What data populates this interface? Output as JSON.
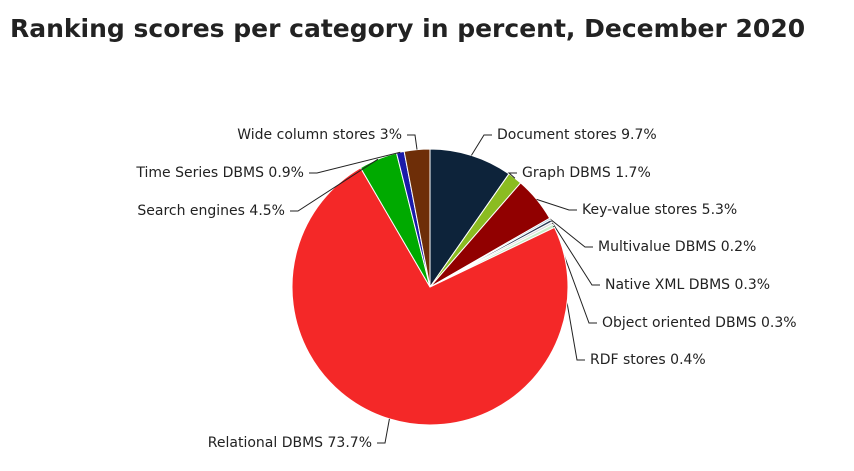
{
  "chart_data": {
    "type": "pie",
    "title": "Ranking scores per category in percent, December 2020",
    "categories": [
      "Document stores",
      "Graph DBMS",
      "Key-value stores",
      "Multivalue DBMS",
      "Native XML DBMS",
      "Object oriented DBMS",
      "RDF stores",
      "Relational DBMS",
      "Search engines",
      "Time Series DBMS",
      "Wide column stores"
    ],
    "values": [
      9.7,
      1.7,
      5.3,
      0.2,
      0.3,
      0.3,
      0.4,
      73.7,
      4.5,
      0.9,
      3
    ],
    "value_labels": [
      "9.7%",
      "1.7%",
      "5.3%",
      "0.2%",
      "0.3%",
      "0.3%",
      "0.4%",
      "73.7%",
      "4.5%",
      "0.9%",
      "3%"
    ],
    "colors": [
      "#0d233a",
      "#8bbc21",
      "#910000",
      "#a6c8e0",
      "#2b3a55",
      "#dddddd",
      "#c8eec8",
      "#f42828",
      "#00aa00",
      "#1a1aaa",
      "#6e2e08"
    ]
  }
}
